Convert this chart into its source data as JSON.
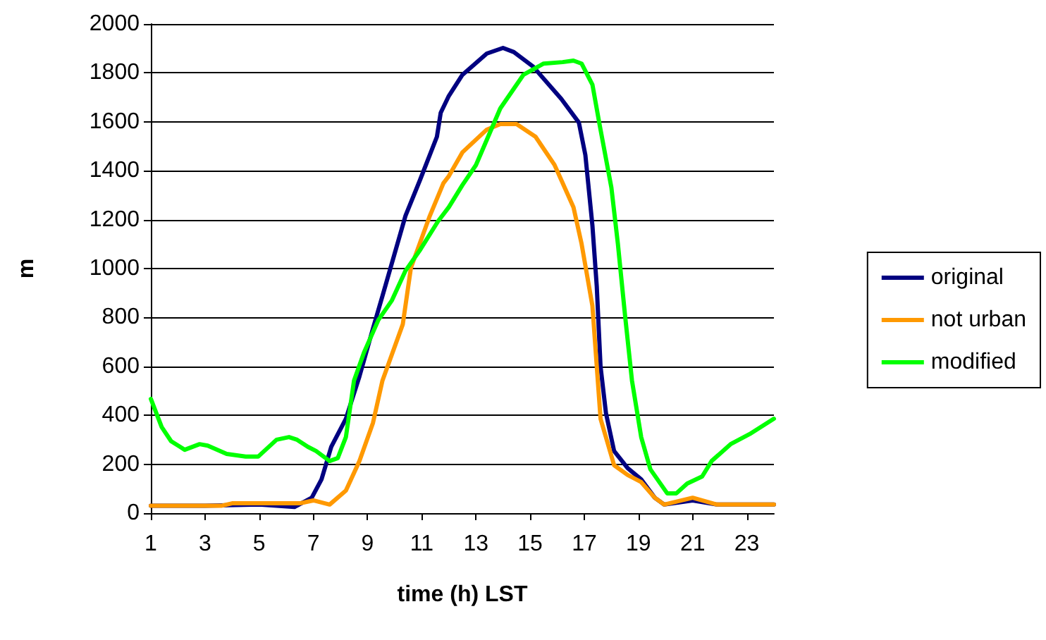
{
  "chart_data": {
    "type": "line",
    "xlabel": "time (h) LST",
    "ylabel": "m",
    "xlim": [
      1,
      24
    ],
    "xticks": [
      1,
      3,
      5,
      7,
      9,
      11,
      13,
      15,
      17,
      19,
      21,
      23
    ],
    "ylim": [
      0,
      2000
    ],
    "yticks": [
      0,
      200,
      400,
      600,
      800,
      1000,
      1200,
      1400,
      1600,
      1800,
      2000
    ],
    "grid": "y",
    "legend": "right",
    "marker": "none",
    "line_style": "solid",
    "series": [
      {
        "name": "original",
        "color": "#000080",
        "x": [
          1,
          3,
          5,
          6.3,
          6.94,
          7.3,
          7.66,
          8.2,
          8.7,
          9.2,
          9.55,
          10.4,
          10.95,
          11.56,
          11.7,
          12.0,
          12.5,
          13.4,
          14.0,
          14.4,
          15.1,
          16.15,
          16.8,
          17.04,
          17.3,
          17.46,
          17.6,
          17.8,
          18.1,
          18.6,
          19.1,
          19.6,
          19.95,
          21.0,
          21.9,
          24
        ],
        "values": [
          30,
          30,
          35,
          25,
          63,
          138,
          271,
          386,
          559,
          755,
          888,
          1216,
          1366,
          1539,
          1637,
          1706,
          1792,
          1879,
          1902,
          1885,
          1827,
          1694,
          1597,
          1464,
          1176,
          928,
          599,
          409,
          254,
          184,
          138,
          63,
          35,
          52,
          35,
          35
        ]
      },
      {
        "name": "not urban",
        "color": "#ff9900",
        "x": [
          1,
          3.6,
          4.0,
          6.5,
          7.0,
          7.6,
          8.2,
          8.7,
          9.2,
          9.55,
          10.3,
          10.6,
          11.3,
          11.8,
          12.0,
          12.5,
          13.4,
          13.9,
          14.5,
          15.2,
          15.9,
          16.6,
          16.9,
          17.3,
          17.6,
          18.1,
          18.6,
          19.1,
          19.6,
          19.95,
          21.0,
          21.9,
          24
        ],
        "values": [
          30,
          30,
          40,
          40,
          52,
          35,
          92,
          213,
          369,
          542,
          772,
          1003,
          1216,
          1349,
          1378,
          1475,
          1568,
          1591,
          1591,
          1539,
          1424,
          1251,
          1101,
          847,
          386,
          196,
          156,
          127,
          63,
          35,
          63,
          35,
          35
        ]
      },
      {
        "name": "modified",
        "color": "#00ff00",
        "x": [
          1,
          1.4,
          1.75,
          2.25,
          2.8,
          3.1,
          3.8,
          4.5,
          4.96,
          5.64,
          6.1,
          6.4,
          6.8,
          7.1,
          7.6,
          7.9,
          8.2,
          8.5,
          8.87,
          9.4,
          9.9,
          10.4,
          10.95,
          11.6,
          12.0,
          12.5,
          13.0,
          13.9,
          14.75,
          15.5,
          16.2,
          16.6,
          16.9,
          17.3,
          17.55,
          18.0,
          18.24,
          18.5,
          18.76,
          19.1,
          19.44,
          20.06,
          20.4,
          20.8,
          21.35,
          21.7,
          22.4,
          23.1,
          24
        ],
        "values": [
          467,
          352,
          294,
          259,
          282,
          276,
          242,
          231,
          231,
          300,
          311,
          300,
          271,
          254,
          213,
          225,
          311,
          542,
          657,
          790,
          870,
          991,
          1078,
          1193,
          1251,
          1341,
          1423,
          1655,
          1792,
          1838,
          1844,
          1850,
          1838,
          1752,
          1597,
          1331,
          1101,
          813,
          542,
          311,
          179,
          81,
          81,
          121,
          150,
          213,
          282,
          323,
          386
        ]
      }
    ]
  }
}
